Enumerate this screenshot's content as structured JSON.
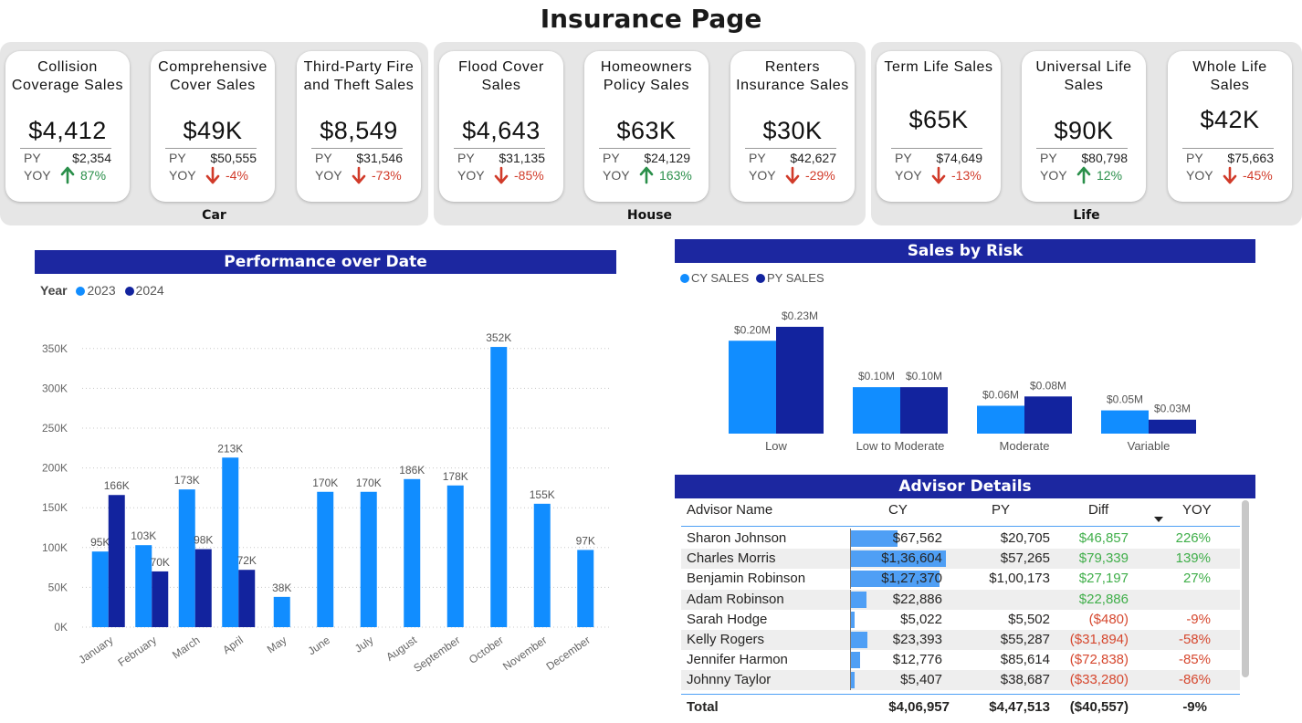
{
  "page": {
    "title": "Insurance Page"
  },
  "groups": {
    "car": {
      "label": "Car",
      "cards": [
        {
          "title": "Collision Coverage Sales",
          "value": "$4,412",
          "py_label": "PY",
          "py": "$2,354",
          "yoy_label": "YOY",
          "yoy": "87%",
          "trend": "up"
        },
        {
          "title": "Comprehensive Cover Sales",
          "value": "$49K",
          "py_label": "PY",
          "py": "$50,555",
          "yoy_label": "YOY",
          "yoy": "-4%",
          "trend": "down"
        },
        {
          "title": "Third-Party Fire and Theft Sales",
          "value": "$8,549",
          "py_label": "PY",
          "py": "$31,546",
          "yoy_label": "YOY",
          "yoy": "-73%",
          "trend": "down"
        }
      ]
    },
    "house": {
      "label": "House",
      "cards": [
        {
          "title": "Flood Cover Sales",
          "value": "$4,643",
          "py_label": "PY",
          "py": "$31,135",
          "yoy_label": "YOY",
          "yoy": "-85%",
          "trend": "down"
        },
        {
          "title": "Homeowners Policy Sales",
          "value": "$63K",
          "py_label": "PY",
          "py": "$24,129",
          "yoy_label": "YOY",
          "yoy": "163%",
          "trend": "up"
        },
        {
          "title": "Renters Insurance Sales",
          "value": "$30K",
          "py_label": "PY",
          "py": "$42,627",
          "yoy_label": "YOY",
          "yoy": "-29%",
          "trend": "down"
        }
      ]
    },
    "life": {
      "label": "Life",
      "cards": [
        {
          "title": "Term Life Sales",
          "value": "$65K",
          "py_label": "PY",
          "py": "$74,649",
          "yoy_label": "YOY",
          "yoy": "-13%",
          "trend": "down"
        },
        {
          "title": "Universal Life Sales",
          "value": "$90K",
          "py_label": "PY",
          "py": "$80,798",
          "yoy_label": "YOY",
          "yoy": "12%",
          "trend": "up"
        },
        {
          "title": "Whole Life Sales",
          "value": "$42K",
          "py_label": "PY",
          "py": "$75,663",
          "yoy_label": "YOY",
          "yoy": "-45%",
          "trend": "down"
        }
      ]
    }
  },
  "colors": {
    "banner": "#1c27a0",
    "series_light": "#118dff",
    "series_dark": "#12239e",
    "up": "#2a8f4a",
    "down": "#d13b2a",
    "bar_cy": "#4f9ff5"
  },
  "chart_data": [
    {
      "type": "bar",
      "title": "Performance over Date",
      "legend_title": "Year",
      "legend_position": "top-left",
      "categories": [
        "January",
        "February",
        "March",
        "April",
        "May",
        "June",
        "July",
        "August",
        "September",
        "October",
        "November",
        "December"
      ],
      "series": [
        {
          "name": "2023",
          "values": [
            95000,
            103000,
            173000,
            213000,
            38000,
            170000,
            170000,
            186000,
            178000,
            352000,
            155000,
            97000
          ],
          "labels": [
            "95K",
            "103K",
            "173K",
            "213K",
            "38K",
            "170K",
            "170K",
            "186K",
            "178K",
            "352K",
            "155K",
            "97K"
          ]
        },
        {
          "name": "2024",
          "values": [
            166000,
            70000,
            98000,
            72000,
            null,
            null,
            null,
            null,
            null,
            null,
            null,
            null
          ],
          "labels": [
            "166K",
            "70K",
            "98K",
            "72K",
            "",
            "",
            "",
            "",
            "",
            "",
            "",
            ""
          ]
        }
      ],
      "yticks": [
        "0K",
        "50K",
        "100K",
        "150K",
        "200K",
        "250K",
        "300K",
        "350K"
      ],
      "ylim": [
        0,
        375000
      ],
      "grid": true
    },
    {
      "type": "bar",
      "title": "Sales by Risk",
      "legend_position": "top-left",
      "categories": [
        "Low",
        "Low to Moderate",
        "Moderate",
        "Variable"
      ],
      "series": [
        {
          "name": "CY SALES",
          "values": [
            0.2,
            0.1,
            0.06,
            0.05
          ],
          "labels": [
            "$0.20M",
            "$0.10M",
            "$0.06M",
            "$0.05M"
          ]
        },
        {
          "name": "PY SALES",
          "values": [
            0.23,
            0.1,
            0.08,
            0.03
          ],
          "labels": [
            "$0.23M",
            "$0.10M",
            "$0.08M",
            "$0.03M"
          ]
        }
      ],
      "ylim": [
        0,
        0.23
      ],
      "grid": false
    }
  ],
  "advisor": {
    "title": "Advisor Details",
    "columns": [
      "Advisor Name",
      "CY",
      "PY",
      "Diff",
      "YOY"
    ],
    "rows": [
      {
        "name": "Sharon Johnson",
        "cy": "$67,562",
        "cy_num": 67562,
        "py": "$20,705",
        "diff": "$46,857",
        "diff_sign": "pos",
        "yoy": "226%",
        "yoy_sign": "pos"
      },
      {
        "name": "Charles Morris",
        "cy": "$1,36,604",
        "cy_num": 136604,
        "py": "$57,265",
        "diff": "$79,339",
        "diff_sign": "pos",
        "yoy": "139%",
        "yoy_sign": "pos"
      },
      {
        "name": "Benjamin Robinson",
        "cy": "$1,27,370",
        "cy_num": 127370,
        "py": "$1,00,173",
        "diff": "$27,197",
        "diff_sign": "pos",
        "yoy": "27%",
        "yoy_sign": "pos"
      },
      {
        "name": "Adam Robinson",
        "cy": "$22,886",
        "cy_num": 22886,
        "py": "",
        "diff": "$22,886",
        "diff_sign": "pos",
        "yoy": "",
        "yoy_sign": "pos"
      },
      {
        "name": "Sarah Hodge",
        "cy": "$5,022",
        "cy_num": 5022,
        "py": "$5,502",
        "diff": "($480)",
        "diff_sign": "neg",
        "yoy": "-9%",
        "yoy_sign": "neg"
      },
      {
        "name": "Kelly Rogers",
        "cy": "$23,393",
        "cy_num": 23393,
        "py": "$55,287",
        "diff": "($31,894)",
        "diff_sign": "neg",
        "yoy": "-58%",
        "yoy_sign": "neg"
      },
      {
        "name": "Jennifer Harmon",
        "cy": "$12,776",
        "cy_num": 12776,
        "py": "$85,614",
        "diff": "($72,838)",
        "diff_sign": "neg",
        "yoy": "-85%",
        "yoy_sign": "neg"
      },
      {
        "name": "Johnny Taylor",
        "cy": "$5,407",
        "cy_num": 5407,
        "py": "$38,687",
        "diff": "($33,280)",
        "diff_sign": "neg",
        "yoy": "-86%",
        "yoy_sign": "neg"
      }
    ],
    "total": {
      "label": "Total",
      "cy": "$4,06,957",
      "py": "$4,47,513",
      "diff": "($40,557)",
      "yoy": "-9%"
    },
    "sort_icon": "sort-descending-icon"
  }
}
